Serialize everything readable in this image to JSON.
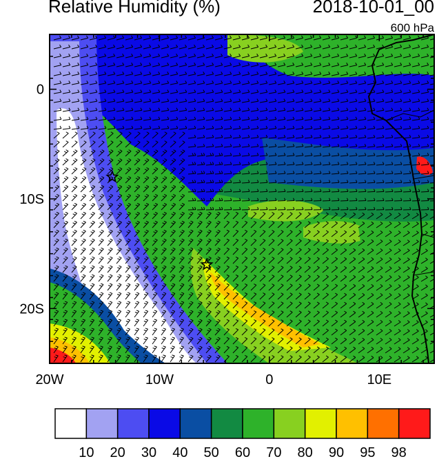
{
  "title": "Relative Humidity (%)",
  "datetime": "2018-10-01_00",
  "level": "600 hPa",
  "map": {
    "lon_range": [
      -20,
      15
    ],
    "lat_range": [
      -25,
      5
    ],
    "lon_ticks": [
      {
        "value": -20,
        "label": "20W"
      },
      {
        "value": -10,
        "label": "10W"
      },
      {
        "value": 0,
        "label": "0"
      },
      {
        "value": 10,
        "label": "10E"
      }
    ],
    "lat_ticks": [
      {
        "value": 0,
        "label": "0"
      },
      {
        "value": -10,
        "label": "10S"
      },
      {
        "value": -20,
        "label": "20S"
      }
    ],
    "markers": [
      {
        "name": "star-marker",
        "lon": -14.3,
        "lat": -8.0
      },
      {
        "name": "star-marker",
        "lon": -5.7,
        "lat": -16.0
      }
    ],
    "features": [
      "relative-humidity-fill",
      "wind-barbs",
      "african-coastline"
    ]
  },
  "colorbar": {
    "labels": [
      "10",
      "20",
      "30",
      "40",
      "50",
      "60",
      "70",
      "80",
      "90",
      "95",
      "98"
    ],
    "colors": [
      "#ffffff",
      "#a2a2f2",
      "#4d4df2",
      "#0a0ae6",
      "#0a4ea3",
      "#128a42",
      "#2eb22a",
      "#88d020",
      "#e2f000",
      "#ffc000",
      "#ff7000",
      "#ff1a1a"
    ]
  }
}
